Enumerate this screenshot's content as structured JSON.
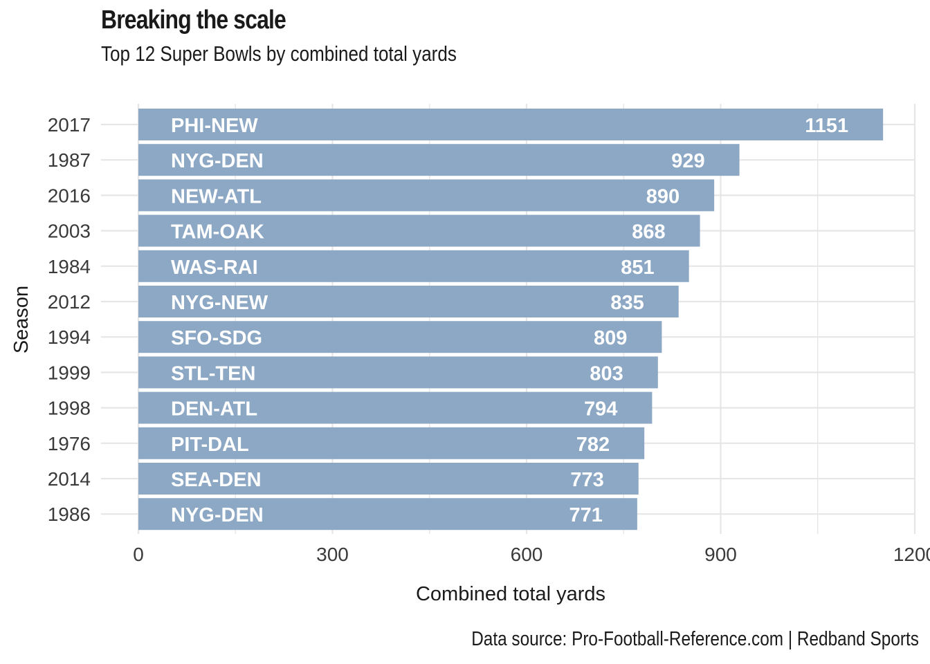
{
  "header": {
    "title": "Breaking the scale",
    "subtitle": "Top 12 Super Bowls by combined total yards"
  },
  "footer": {
    "caption": "Data source: Pro-Football-Reference.com  |  Redband Sports"
  },
  "colors": {
    "bar": "#8da8c4",
    "grid": "#e6e6e6",
    "label": "#ffffff"
  },
  "chart_data": {
    "type": "bar",
    "orientation": "horizontal",
    "title": "Breaking the scale",
    "subtitle": "Top 12 Super Bowls by combined total yards",
    "xlabel": "Combined total yards",
    "ylabel": "Season",
    "xlim": [
      0,
      1200
    ],
    "x_ticks": [
      0,
      300,
      600,
      900,
      1200
    ],
    "grid": true,
    "legend": "none",
    "categories": [
      "2017",
      "1987",
      "2016",
      "2003",
      "1984",
      "2012",
      "1994",
      "1999",
      "1998",
      "1976",
      "2014",
      "1986"
    ],
    "matchups": [
      "PHI-NEW",
      "NYG-DEN",
      "NEW-ATL",
      "TAM-OAK",
      "WAS-RAI",
      "NYG-NEW",
      "SFO-SDG",
      "STL-TEN",
      "DEN-ATL",
      "PIT-DAL",
      "SEA-DEN",
      "NYG-DEN"
    ],
    "values": [
      1151,
      929,
      890,
      868,
      851,
      835,
      809,
      803,
      794,
      782,
      773,
      771
    ]
  }
}
